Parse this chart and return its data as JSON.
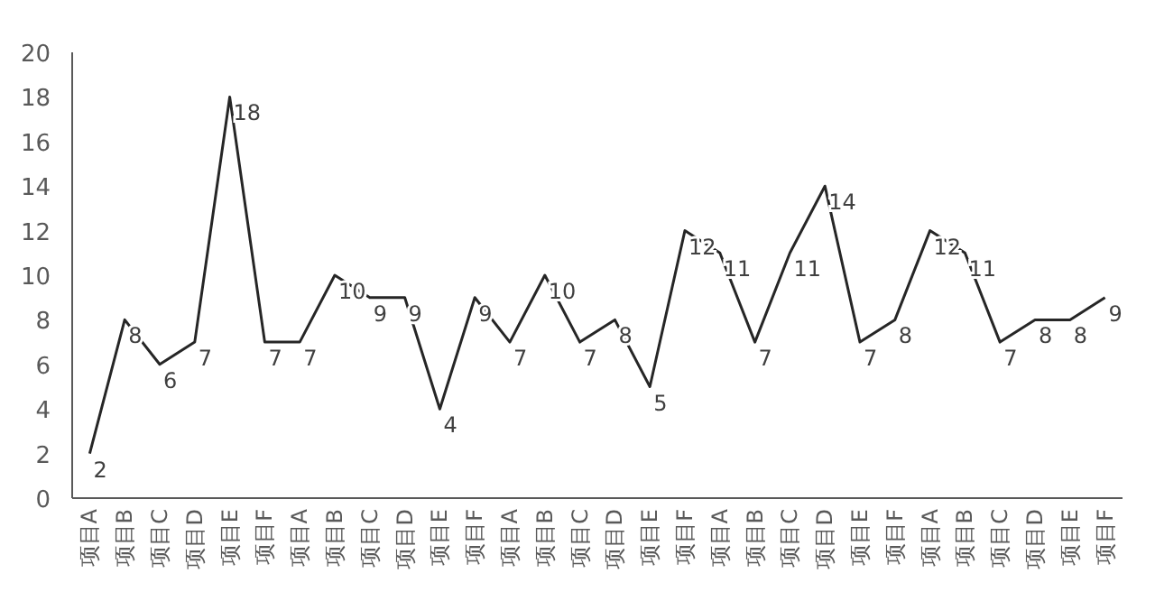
{
  "chart_data": {
    "type": "line",
    "categories": [
      "项目A",
      "项目B",
      "项目C",
      "项目D",
      "项目E",
      "项目F",
      "项目A",
      "项目B",
      "项目C",
      "项目D",
      "项目E",
      "项目F",
      "项目A",
      "项目B",
      "项目C",
      "项目D",
      "项目E",
      "项目F",
      "项目A",
      "项目B",
      "项目C",
      "项目D",
      "项目E",
      "项目F",
      "项目A",
      "项目B",
      "项目C",
      "项目D",
      "项目E",
      "项目F"
    ],
    "series": [
      {
        "color": "#262626",
        "values": [
          2,
          8,
          6,
          7,
          18,
          7,
          7,
          10,
          9,
          9,
          4,
          9,
          7,
          10,
          7,
          8,
          5,
          12,
          11,
          7,
          11,
          14,
          7,
          8,
          12,
          11,
          7,
          8,
          8,
          9
        ]
      }
    ],
    "ylim": [
      0,
      20
    ],
    "yticks": [
      0,
      2,
      4,
      6,
      8,
      10,
      12,
      14,
      16,
      18,
      20
    ],
    "data_labels": true,
    "grid": false,
    "marker": "none",
    "line_style": "solid"
  }
}
